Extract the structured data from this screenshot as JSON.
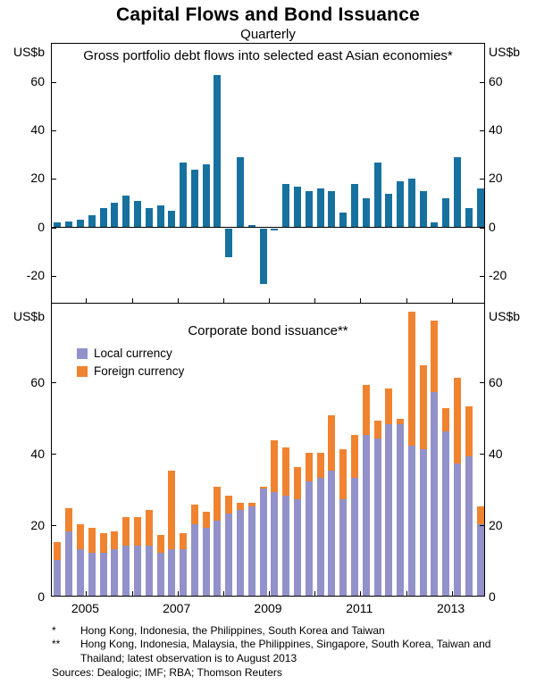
{
  "header": {
    "title": "Capital Flows and Bond Issuance",
    "subtitle": "Quarterly"
  },
  "colors": {
    "blue": "#17719f",
    "purple": "#9291c9",
    "orange": "#f08330"
  },
  "x_axis": {
    "domain_start": 2004.25,
    "year_ticks": [
      2005,
      2006,
      2007,
      2008,
      2009,
      2010,
      2011,
      2012,
      2013
    ],
    "year_labels": [
      "2005",
      "2007",
      "2009",
      "2011",
      "2013"
    ]
  },
  "chart_data": [
    {
      "type": "bar",
      "panel": "top",
      "title": "Gross portfolio debt flows into selected east Asian economies*",
      "unit_label": "US$b",
      "ylim": [
        -32,
        76
      ],
      "yticks": [
        60,
        40,
        20,
        0,
        -20
      ],
      "color_key": "blue",
      "quarters": [
        "2004 Q2",
        "2004 Q3",
        "2004 Q4",
        "2005 Q1",
        "2005 Q2",
        "2005 Q3",
        "2005 Q4",
        "2006 Q1",
        "2006 Q2",
        "2006 Q3",
        "2006 Q4",
        "2007 Q1",
        "2007 Q2",
        "2007 Q3",
        "2007 Q4",
        "2008 Q1",
        "2008 Q2",
        "2008 Q3",
        "2008 Q4",
        "2009 Q1",
        "2009 Q2",
        "2009 Q3",
        "2009 Q4",
        "2010 Q1",
        "2010 Q2",
        "2010 Q3",
        "2010 Q4",
        "2011 Q1",
        "2011 Q2",
        "2011 Q3",
        "2011 Q4",
        "2012 Q1",
        "2012 Q2",
        "2012 Q3",
        "2012 Q4",
        "2013 Q1",
        "2013 Q2",
        "2013 Q3"
      ],
      "values": [
        2,
        2.5,
        3,
        5,
        8,
        10,
        13,
        11,
        8,
        9,
        7,
        27,
        24,
        26,
        63,
        -12,
        29,
        1,
        -23,
        -1,
        18,
        17,
        15,
        16,
        15,
        6,
        18,
        12,
        27,
        14,
        19,
        20,
        15,
        2,
        12,
        29,
        8,
        16
      ]
    },
    {
      "type": "stacked-bar",
      "panel": "bottom",
      "title": "Corporate bond issuance**",
      "unit_label": "US$b",
      "ylim": [
        0,
        82
      ],
      "yticks": [
        60,
        40,
        20,
        0
      ],
      "quarters": [
        "2004 Q2",
        "2004 Q3",
        "2004 Q4",
        "2005 Q1",
        "2005 Q2",
        "2005 Q3",
        "2005 Q4",
        "2006 Q1",
        "2006 Q2",
        "2006 Q3",
        "2006 Q4",
        "2007 Q1",
        "2007 Q2",
        "2007 Q3",
        "2007 Q4",
        "2008 Q1",
        "2008 Q2",
        "2008 Q3",
        "2008 Q4",
        "2009 Q1",
        "2009 Q2",
        "2009 Q3",
        "2009 Q4",
        "2010 Q1",
        "2010 Q2",
        "2010 Q3",
        "2010 Q4",
        "2011 Q1",
        "2011 Q2",
        "2011 Q3",
        "2011 Q4",
        "2012 Q1",
        "2012 Q2",
        "2012 Q3",
        "2012 Q4",
        "2013 Q1",
        "2013 Q2",
        "2013 Q3"
      ],
      "series": [
        {
          "name": "Local currency",
          "color_key": "purple",
          "values": [
            10,
            18,
            13,
            12,
            12,
            13,
            14,
            14,
            14,
            12,
            13,
            13,
            20,
            19,
            21,
            23,
            24,
            25,
            30,
            29,
            28,
            27,
            32,
            33,
            35,
            27,
            33,
            45,
            44,
            48,
            48,
            42,
            41,
            57,
            46,
            37,
            39,
            20
          ]
        },
        {
          "name": "Foreign currency",
          "color_key": "orange",
          "values": [
            5,
            6.5,
            7,
            7,
            5.5,
            5,
            8,
            8,
            10,
            5,
            22,
            4.5,
            5.5,
            4.5,
            9.5,
            5,
            2,
            1,
            0.5,
            14.5,
            13.5,
            9,
            8,
            7,
            15.5,
            14,
            12,
            14,
            5,
            10,
            1.5,
            37.5,
            23.5,
            20,
            6.5,
            24,
            14,
            5
          ]
        }
      ]
    }
  ],
  "footnotes": [
    {
      "marker": "*",
      "text": "Hong Kong, Indonesia, the Philippines, South Korea and Taiwan"
    },
    {
      "marker": "**",
      "text": "Hong Kong, Indonesia, Malaysia, the Philippines, Singapore, South Korea, Taiwan and Thailand; latest observation is to August 2013"
    }
  ],
  "sources": "Sources: Dealogic; IMF; RBA; Thomson Reuters"
}
